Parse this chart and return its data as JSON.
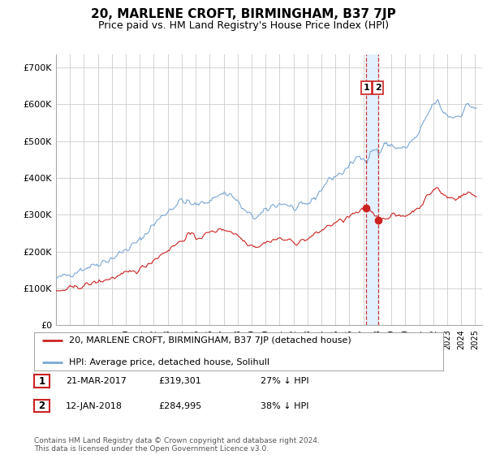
{
  "title": "20, MARLENE CROFT, BIRMINGHAM, B37 7JP",
  "subtitle": "Price paid vs. HM Land Registry's House Price Index (HPI)",
  "title_fontsize": 11,
  "subtitle_fontsize": 9,
  "x_start_year": 1995,
  "x_end_year": 2025.5,
  "y_min": 0,
  "y_max": 735000,
  "y_ticks": [
    0,
    100000,
    200000,
    300000,
    400000,
    500000,
    600000,
    700000
  ],
  "y_tick_labels": [
    "£0",
    "£100K",
    "£200K",
    "£300K",
    "£400K",
    "£500K",
    "£600K",
    "£700K"
  ],
  "hpi_color": "#7aa7d4",
  "price_color": "#cc2222",
  "vline_color": "#cc3333",
  "shade_color": "#ddeeff",
  "annotation_box_color": "#cc2222",
  "grid_color": "#cccccc",
  "background_color": "#ffffff",
  "legend_label_price": "20, MARLENE CROFT, BIRMINGHAM, B37 7JP (detached house)",
  "legend_label_hpi": "HPI: Average price, detached house, Solihull",
  "transaction1_year": 2017.21,
  "transaction2_year": 2018.04,
  "transaction1_price": 319301,
  "transaction2_price": 284995,
  "transactions": [
    {
      "id": 1,
      "date": "21-MAR-2017",
      "price": "£319,301",
      "hpi_diff": "27% ↓ HPI",
      "year": 2017.21
    },
    {
      "id": 2,
      "date": "12-JAN-2018",
      "price": "£284,995",
      "hpi_diff": "38% ↓ HPI",
      "year": 2018.04
    }
  ],
  "footnote": "Contains HM Land Registry data © Crown copyright and database right 2024.\nThis data is licensed under the Open Government Licence v3.0."
}
